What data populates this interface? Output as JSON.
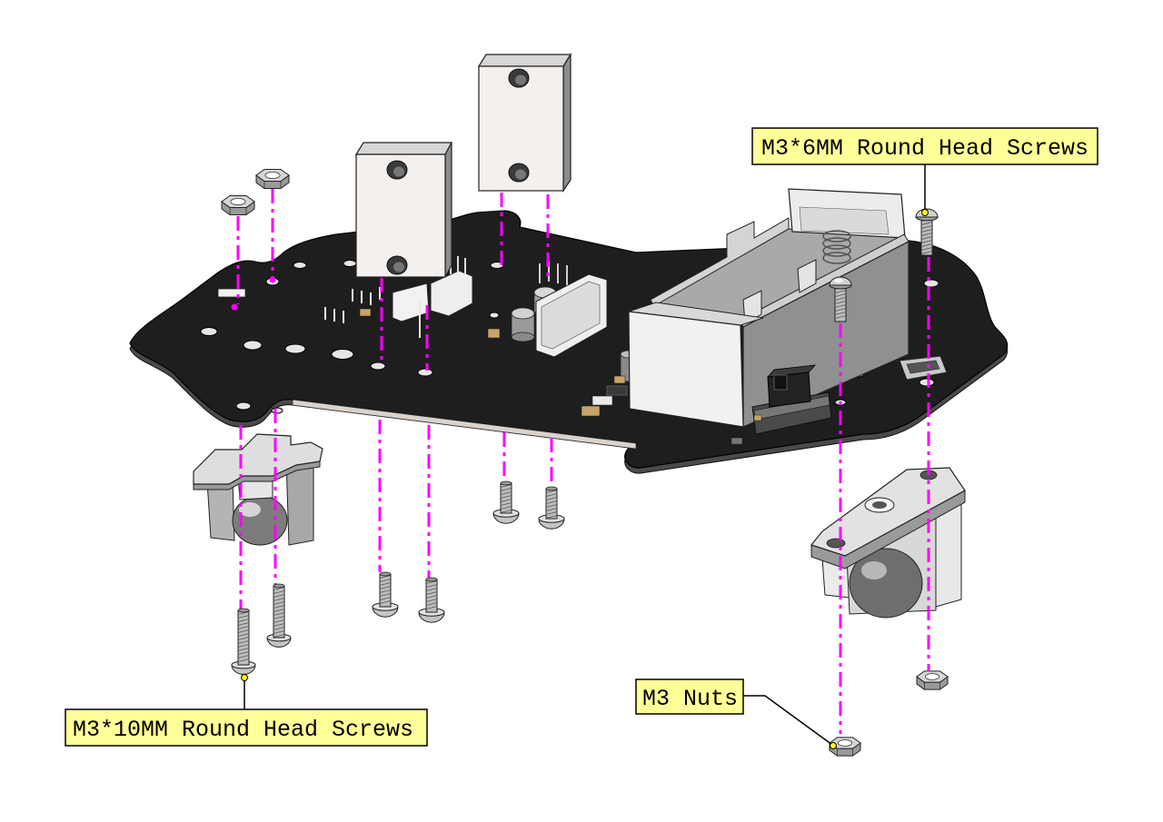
{
  "diagram": {
    "callouts": {
      "m3_6mm_screws": "M3*6MM Round Head Screws",
      "m3_10mm_screws": "M3*10MM Round Head Screws",
      "m3_nuts": "M3 Nuts"
    }
  },
  "colors": {
    "guide_line": "#ff00ff",
    "callout_fill": "#ffff99",
    "callout_border": "#000000",
    "board": "#1e1e1e",
    "leader_dot": "#ffff00"
  }
}
